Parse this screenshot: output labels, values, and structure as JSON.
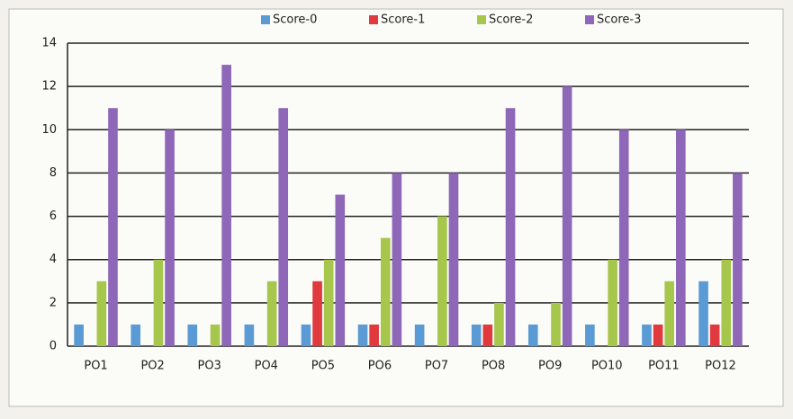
{
  "chart_data": {
    "type": "bar",
    "categories": [
      "PO1",
      "PO2",
      "PO3",
      "PO4",
      "PO5",
      "PO6",
      "PO7",
      "PO8",
      "PO9",
      "PO10",
      "PO11",
      "PO12"
    ],
    "series": [
      {
        "name": "Score-0",
        "color": "#5b9bd5",
        "values": [
          1,
          1,
          1,
          1,
          1,
          1,
          1,
          1,
          1,
          1,
          1,
          3
        ]
      },
      {
        "name": "Score-1",
        "color": "#e0393e",
        "values": [
          0,
          0,
          0,
          0,
          3,
          1,
          0,
          1,
          0,
          0,
          1,
          1
        ]
      },
      {
        "name": "Score-2",
        "color": "#a6c64c",
        "values": [
          3,
          4,
          1,
          3,
          4,
          5,
          6,
          2,
          2,
          4,
          3,
          4
        ]
      },
      {
        "name": "Score-3",
        "color": "#8e67b8",
        "values": [
          11,
          10,
          13,
          11,
          7,
          8,
          8,
          11,
          12,
          10,
          10,
          8
        ]
      }
    ],
    "ylim": [
      0,
      14
    ],
    "yticks": [
      0,
      2,
      4,
      6,
      8,
      10,
      12,
      14
    ],
    "grid": true,
    "legend": "top"
  }
}
